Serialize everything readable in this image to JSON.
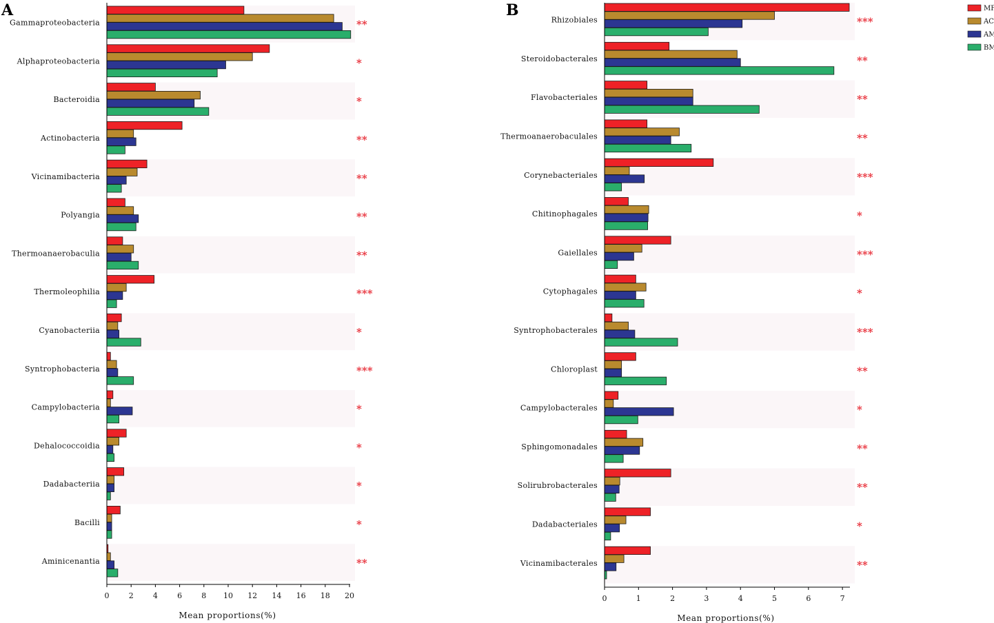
{
  "chart_data": [
    {
      "type": "bar",
      "orientation": "horizontal",
      "panel": "A",
      "categories": [
        "Gammaproteobacteria",
        "Alphaproteobacteria",
        "Bacteroidia",
        "Actinobacteria",
        "Vicinamibacteria",
        "Polyangia",
        "Thermoanaerobaculia",
        "Thermoleophilia",
        "Cyanobacteriia",
        "Syntrophobacteria",
        "Campylobacteria",
        "Dehalococcoidia",
        "Dadabacteriia",
        "Bacilli",
        "Aminicenantia"
      ],
      "series": [
        {
          "name": "MF",
          "values": [
            11.3,
            13.4,
            4.0,
            6.2,
            3.3,
            1.5,
            1.3,
            3.9,
            1.2,
            0.3,
            0.5,
            1.6,
            1.4,
            1.1,
            0.1
          ]
        },
        {
          "name": "AC",
          "values": [
            18.7,
            12.0,
            7.7,
            2.2,
            2.5,
            2.2,
            2.2,
            1.6,
            0.9,
            0.8,
            0.3,
            1.0,
            0.6,
            0.4,
            0.3
          ]
        },
        {
          "name": "AM",
          "values": [
            19.4,
            9.8,
            7.2,
            2.4,
            1.6,
            2.6,
            2.0,
            1.3,
            1.0,
            0.9,
            2.1,
            0.5,
            0.6,
            0.4,
            0.6
          ]
        },
        {
          "name": "BM",
          "values": [
            20.1,
            9.1,
            8.4,
            1.5,
            1.2,
            2.4,
            2.6,
            0.8,
            2.8,
            2.2,
            1.0,
            0.6,
            0.3,
            0.4,
            0.9
          ]
        }
      ],
      "significance": [
        "**",
        "*",
        "*",
        "**",
        "**",
        "**",
        "**",
        "***",
        "*",
        "***",
        "*",
        "*",
        "*",
        "*",
        "**"
      ],
      "xlabel": "Mean proportions(%)",
      "xlim": [
        0,
        20
      ],
      "xticks": [
        0,
        2,
        4,
        6,
        8,
        10,
        12,
        14,
        16,
        18,
        20
      ]
    },
    {
      "type": "bar",
      "orientation": "horizontal",
      "panel": "B",
      "categories": [
        "Rhizobiales",
        "Steroidobacterales",
        "Flavobacteriales",
        "Thermoanaerobaculales",
        "Corynebacteriales",
        "Chitinophagales",
        "Gaiellales",
        "Cytophagales",
        "Syntrophobacterales",
        "Chloroplast",
        "Campylobacterales",
        "Sphingomonadales",
        "Solirubrobacterales",
        "Dadabacteriales",
        "Vicinamibacterales"
      ],
      "series": [
        {
          "name": "MF",
          "values": [
            7.2,
            1.9,
            1.25,
            1.25,
            3.2,
            0.7,
            1.95,
            0.92,
            0.22,
            0.92,
            0.4,
            0.65,
            1.95,
            1.35,
            1.35
          ]
        },
        {
          "name": "AC",
          "values": [
            5.0,
            3.9,
            2.6,
            2.2,
            0.73,
            1.3,
            1.1,
            1.22,
            0.7,
            0.5,
            0.26,
            1.13,
            0.45,
            0.63,
            0.57
          ]
        },
        {
          "name": "AM",
          "values": [
            4.05,
            4.0,
            2.6,
            1.95,
            1.17,
            1.28,
            0.86,
            0.92,
            0.89,
            0.5,
            2.03,
            1.03,
            0.43,
            0.44,
            0.34
          ]
        },
        {
          "name": "BM",
          "values": [
            3.05,
            6.75,
            4.55,
            2.55,
            0.5,
            1.27,
            0.38,
            1.16,
            2.15,
            1.82,
            0.98,
            0.55,
            0.33,
            0.18,
            0.06
          ]
        }
      ],
      "significance": [
        "***",
        "**",
        "**",
        "**",
        "***",
        "*",
        "***",
        "*",
        "***",
        "**",
        "*",
        "**",
        "**",
        "*",
        "**"
      ],
      "xlabel": "Mean proportions(%)",
      "xlim": [
        0,
        7.2
      ],
      "xticks": [
        0,
        1,
        2,
        3,
        4,
        5,
        6,
        7
      ]
    }
  ],
  "legend": {
    "items": [
      {
        "name": "MF",
        "color": "#ee2227"
      },
      {
        "name": "AC",
        "color": "#b98a2e"
      },
      {
        "name": "AM",
        "color": "#2c3692"
      },
      {
        "name": "BM",
        "color": "#2aae6b"
      }
    ]
  },
  "colors": {
    "significance": "#e8303a",
    "band": "#fbf6f8"
  }
}
